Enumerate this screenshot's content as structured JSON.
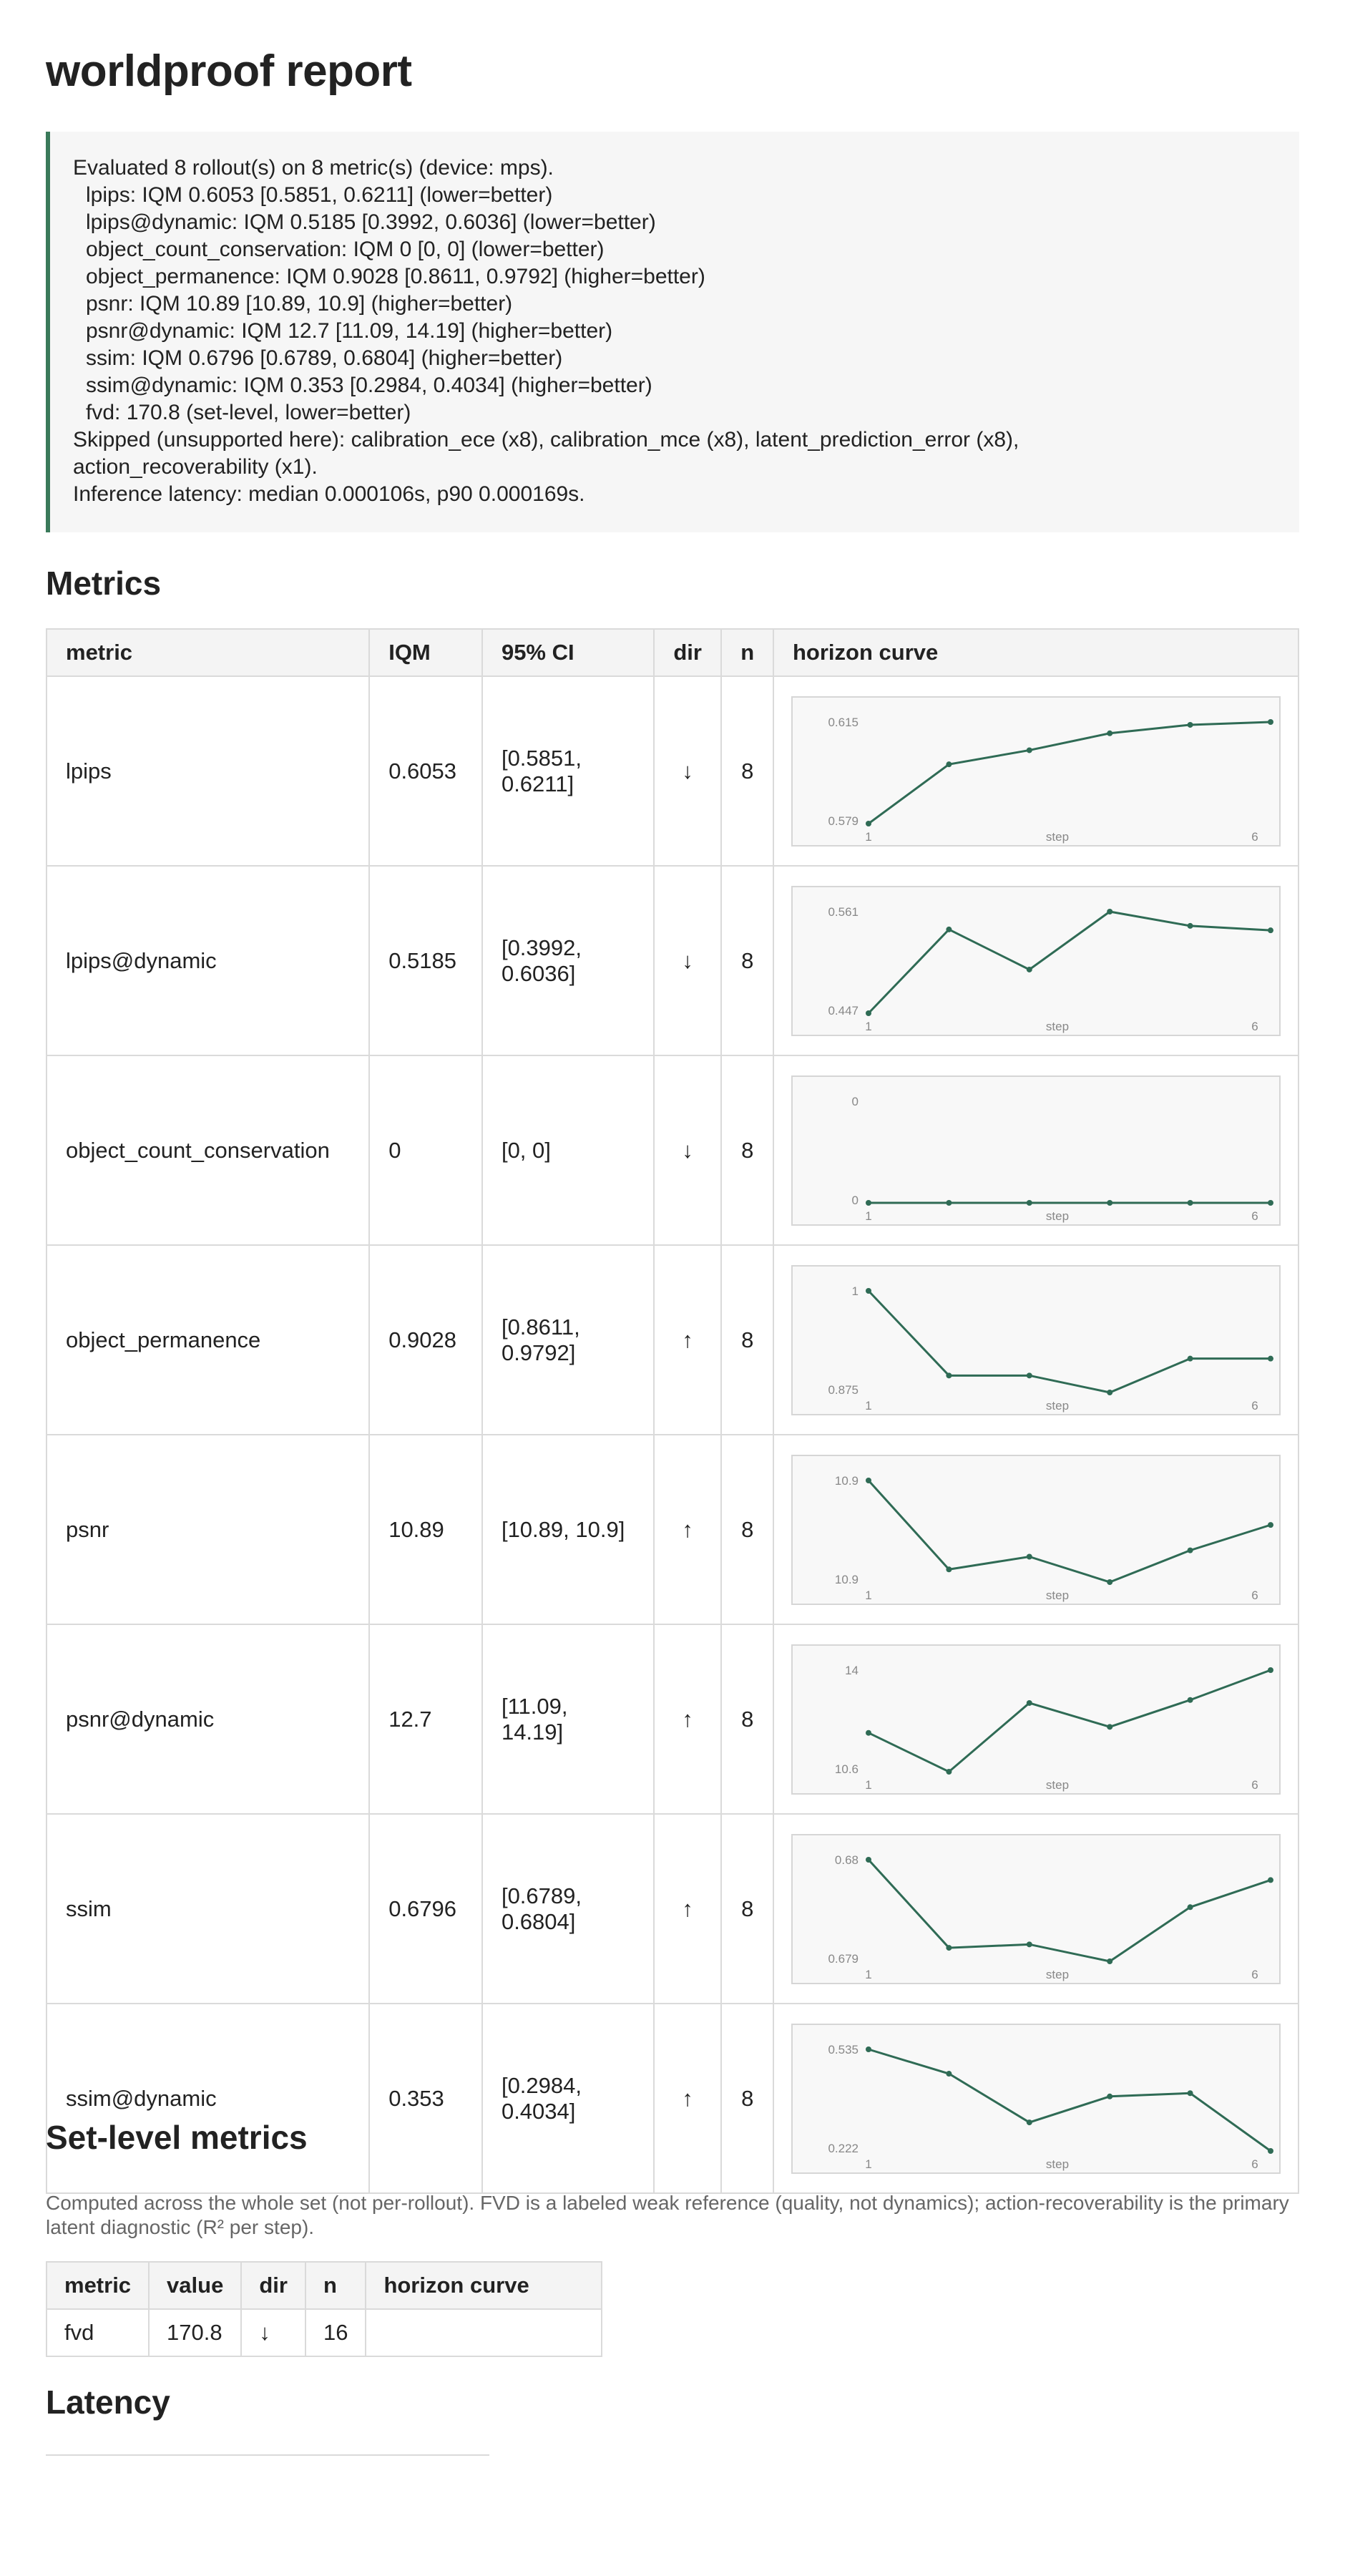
{
  "title": "worldproof report",
  "summary": {
    "lines": [
      "Evaluated 8 rollout(s) on 8 metric(s) (device: mps).",
      "lpips: IQM 0.6053 [0.5851, 0.6211] (lower=better)",
      "lpips@dynamic: IQM 0.5185 [0.3992, 0.6036] (lower=better)",
      "object_count_conservation: IQM 0 [0, 0] (lower=better)",
      "object_permanence: IQM 0.9028 [0.8611, 0.9792] (higher=better)",
      "psnr: IQM 10.89 [10.89, 10.9] (higher=better)",
      "psnr@dynamic: IQM 12.7 [11.09, 14.19] (higher=better)",
      "ssim: IQM 0.6796 [0.6789, 0.6804] (higher=better)",
      "ssim@dynamic: IQM 0.353 [0.2984, 0.4034] (higher=better)",
      "fvd: 170.8 (set-level, lower=better)",
      "Skipped (unsupported here): calibration_ece (x8), calibration_mce (x8), latent_prediction_error (x8),",
      "action_recoverability (x1).",
      "Inference latency: median 0.000106s, p90 0.000169s."
    ]
  },
  "metrics_section": {
    "heading": "Metrics",
    "columns": [
      "metric",
      "IQM",
      "95% CI",
      "dir",
      "n",
      "horizon curve"
    ],
    "rows": [
      {
        "metric": "lpips",
        "iqm": "0.6053",
        "ci": "[0.5851, 0.6211]",
        "dir": "↓",
        "n": "8",
        "curve": {
          "ymax_label": "0.615",
          "ymin_label": "0.579",
          "x_start": "1",
          "x_mid": "step",
          "x_end": "6",
          "values": [
            0.579,
            0.6,
            0.605,
            0.611,
            0.614,
            0.615
          ]
        }
      },
      {
        "metric": "lpips@dynamic",
        "iqm": "0.5185",
        "ci": "[0.3992, 0.6036]",
        "dir": "↓",
        "n": "8",
        "curve": {
          "ymax_label": "0.561",
          "ymin_label": "0.447",
          "x_start": "1",
          "x_mid": "step",
          "x_end": "6",
          "values": [
            0.447,
            0.541,
            0.496,
            0.561,
            0.545,
            0.54
          ]
        }
      },
      {
        "metric": "object_count_conservation",
        "iqm": "0",
        "ci": "[0, 0]",
        "dir": "↓",
        "n": "8",
        "curve": {
          "ymax_label": "0",
          "ymin_label": "0",
          "x_start": "1",
          "x_mid": "step",
          "x_end": "6",
          "values": [
            0,
            0,
            0,
            0,
            0,
            0
          ]
        }
      },
      {
        "metric": "object_permanence",
        "iqm": "0.9028",
        "ci": "[0.8611, 0.9792]",
        "dir": "↑",
        "n": "8",
        "curve": {
          "ymax_label": "1",
          "ymin_label": "0.875",
          "x_start": "1",
          "x_mid": "step",
          "x_end": "6",
          "values": [
            1.0,
            0.9,
            0.9,
            0.88,
            0.92,
            0.92
          ]
        }
      },
      {
        "metric": "psnr",
        "iqm": "10.89",
        "ci": "[10.89, 10.9]",
        "dir": "↑",
        "n": "8",
        "curve": {
          "ymax_label": "10.9",
          "ymin_label": "10.9",
          "x_start": "1",
          "x_mid": "step",
          "x_end": "6",
          "values": [
            10.9,
            10.886,
            10.888,
            10.884,
            10.889,
            10.893
          ]
        }
      },
      {
        "metric": "psnr@dynamic",
        "iqm": "12.7",
        "ci": "[11.09, 14.19]",
        "dir": "↑",
        "n": "8",
        "curve": {
          "ymax_label": "14",
          "ymin_label": "10.6",
          "x_start": "1",
          "x_mid": "step",
          "x_end": "6",
          "values": [
            11.9,
            10.6,
            12.9,
            12.1,
            13.0,
            14.0
          ]
        }
      },
      {
        "metric": "ssim",
        "iqm": "0.6796",
        "ci": "[0.6789, 0.6804]",
        "dir": "↑",
        "n": "8",
        "curve": {
          "ymax_label": "0.68",
          "ymin_label": "0.679",
          "x_start": "1",
          "x_mid": "step",
          "x_end": "6",
          "values": [
            0.6805,
            0.6792,
            0.67925,
            0.679,
            0.6798,
            0.6802
          ]
        }
      },
      {
        "metric": "ssim@dynamic",
        "iqm": "0.353",
        "ci": "[0.2984, 0.4034]",
        "dir": "↑",
        "n": "8",
        "curve": {
          "ymax_label": "0.535",
          "ymin_label": "0.222",
          "x_start": "1",
          "x_mid": "step",
          "x_end": "6",
          "values": [
            0.535,
            0.46,
            0.31,
            0.39,
            0.4,
            0.222
          ]
        }
      }
    ]
  },
  "set_level_section": {
    "heading": "Set-level metrics",
    "note": "Computed across the whole set (not per-rollout). FVD is a labeled weak reference (quality, not dynamics); action-recoverability is the primary latent diagnostic (R² per step).",
    "columns": [
      "metric",
      "value",
      "dir",
      "n",
      "horizon curve"
    ],
    "rows": [
      {
        "metric": "fvd",
        "value": "170.8",
        "dir": "↓",
        "n": "16",
        "curve": ""
      }
    ]
  },
  "latency_section": {
    "heading": "Latency"
  },
  "colors": {
    "accent": "#3a7a5a",
    "line": "#2f6b55",
    "chart_bg": "#f8f8f8"
  }
}
